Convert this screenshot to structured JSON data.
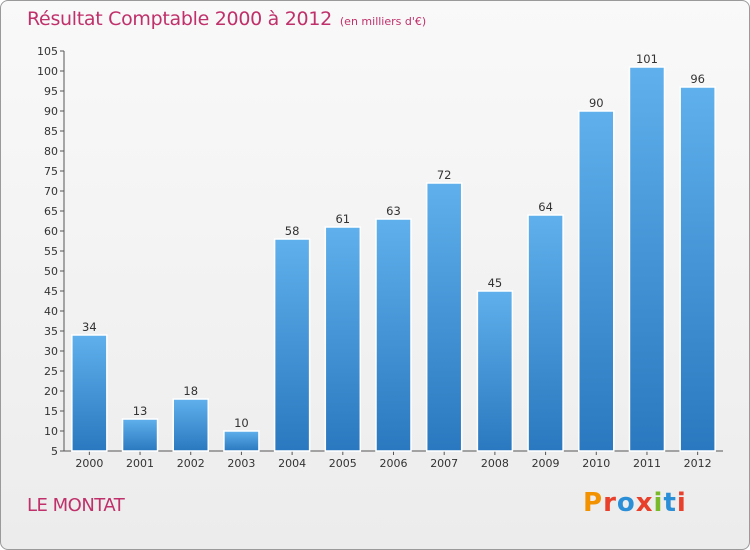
{
  "header": {
    "title": "Résultat Comptable 2000 à 2012",
    "subtitle": "(en milliers d'€)"
  },
  "footer": {
    "place": "LE MONTAT",
    "logo": "Proxiti",
    "logo_colors": [
      "#f39200",
      "#e8402a",
      "#2a8fd6",
      "#e8402a",
      "#7ab929",
      "#2a8fd6",
      "#e8402a"
    ]
  },
  "chart_data": {
    "type": "bar",
    "categories": [
      "2000",
      "2001",
      "2002",
      "2003",
      "2004",
      "2005",
      "2006",
      "2007",
      "2008",
      "2009",
      "2010",
      "2011",
      "2012"
    ],
    "values": [
      34,
      13,
      18,
      10,
      58,
      61,
      63,
      72,
      45,
      64,
      90,
      101,
      96
    ],
    "ylim": [
      5,
      105
    ],
    "yticks": [
      5,
      10,
      15,
      20,
      25,
      30,
      35,
      40,
      45,
      50,
      55,
      60,
      65,
      70,
      75,
      80,
      85,
      90,
      95,
      100,
      105
    ],
    "grid": false,
    "bar_color": "#3f97dc",
    "title_color": "#c0306a"
  }
}
